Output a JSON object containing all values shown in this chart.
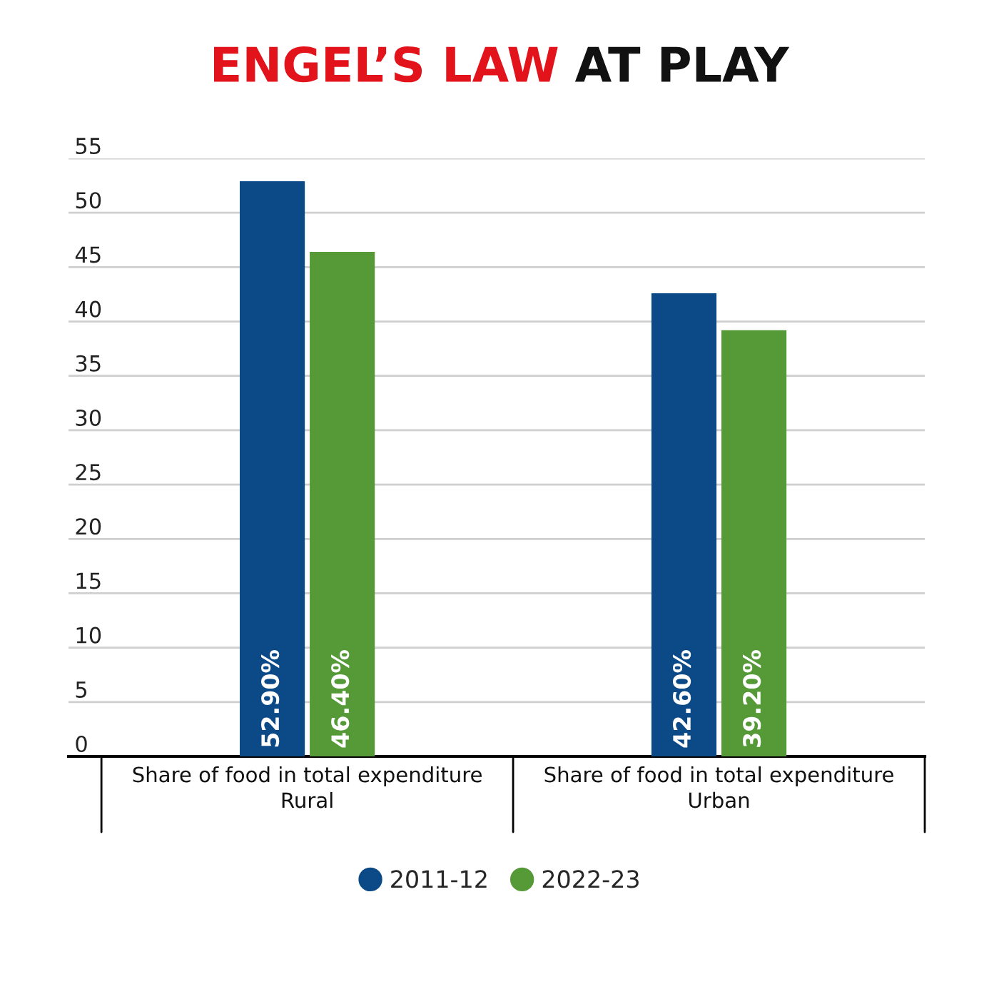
{
  "chart_data": {
    "type": "bar",
    "title": "ENGEL’S LAW AT PLAY",
    "categories": [
      "Share of food in total expenditure\nRural",
      "Share of food in total expenditure\nUrban"
    ],
    "series": [
      {
        "name": "2011-12",
        "color": "#0b4a87",
        "values": [
          52.9,
          42.6
        ],
        "value_labels": [
          "52.90%",
          "42.60%"
        ]
      },
      {
        "name": "2022-23",
        "color": "#559a37",
        "values": [
          46.4,
          39.2
        ],
        "value_labels": [
          "46.40%",
          "39.20%"
        ]
      }
    ],
    "ylim": [
      0,
      55
    ],
    "yticks": [
      0,
      5,
      10,
      15,
      20,
      25,
      30,
      35,
      40,
      45,
      50,
      55
    ],
    "grid": "y",
    "legend": "bottom"
  }
}
